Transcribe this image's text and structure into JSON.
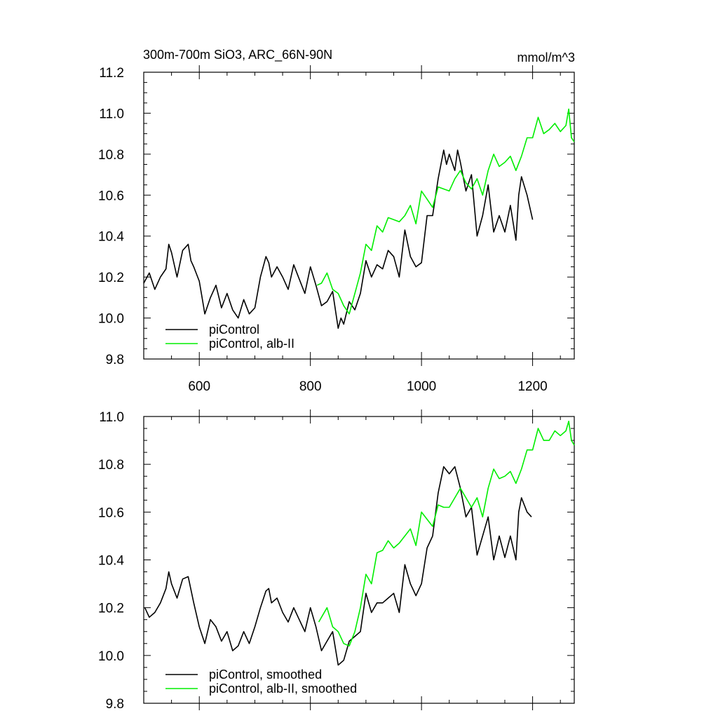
{
  "chart_data": [
    {
      "type": "line",
      "title": "300m-700m SiO3, ARC_66N-90N",
      "units": "mmol/m^3",
      "xlim": [
        500,
        1275
      ],
      "ylim": [
        9.8,
        11.2
      ],
      "xticks": [
        600,
        800,
        1000,
        1200
      ],
      "xtick_labels": [
        "600",
        "800",
        "1000",
        "1200"
      ],
      "yticks": [
        9.8,
        10.0,
        10.2,
        10.4,
        10.6,
        10.8,
        11.0,
        11.2
      ],
      "ytick_labels": [
        "9.8",
        "10.0",
        "10.2",
        "10.4",
        "10.6",
        "10.8",
        "11.0",
        "11.2"
      ],
      "legend_position": "bottom-left",
      "series": [
        {
          "name": "piControl",
          "color": "#000000",
          "x": [
            500,
            510,
            520,
            530,
            540,
            545,
            550,
            560,
            570,
            580,
            585,
            590,
            600,
            605,
            610,
            620,
            630,
            640,
            650,
            660,
            670,
            680,
            690,
            700,
            710,
            720,
            725,
            730,
            740,
            750,
            760,
            770,
            780,
            790,
            800,
            810,
            820,
            830,
            840,
            850,
            855,
            860,
            870,
            880,
            890,
            900,
            910,
            920,
            930,
            940,
            950,
            960,
            970,
            980,
            990,
            1000,
            1010,
            1020,
            1030,
            1040,
            1045,
            1050,
            1060,
            1065,
            1070,
            1080,
            1090,
            1100,
            1110,
            1120,
            1130,
            1140,
            1150,
            1160,
            1170,
            1175,
            1180,
            1190,
            1200
          ],
          "values": [
            10.17,
            10.22,
            10.14,
            10.2,
            10.24,
            10.36,
            10.32,
            10.2,
            10.33,
            10.36,
            10.28,
            10.25,
            10.18,
            10.1,
            10.02,
            10.1,
            10.16,
            10.05,
            10.12,
            10.04,
            10.0,
            10.09,
            10.02,
            10.05,
            10.2,
            10.3,
            10.27,
            10.2,
            10.25,
            10.2,
            10.14,
            10.26,
            10.19,
            10.12,
            10.25,
            10.16,
            10.06,
            10.08,
            10.13,
            9.95,
            10.0,
            9.97,
            10.08,
            10.04,
            10.12,
            10.28,
            10.2,
            10.26,
            10.24,
            10.33,
            10.3,
            10.2,
            10.43,
            10.3,
            10.25,
            10.27,
            10.5,
            10.5,
            10.68,
            10.82,
            10.75,
            10.8,
            10.72,
            10.82,
            10.76,
            10.62,
            10.7,
            10.4,
            10.5,
            10.65,
            10.42,
            10.5,
            10.42,
            10.55,
            10.38,
            10.6,
            10.69,
            10.6,
            10.48
          ]
        },
        {
          "name": "piControl, alb-II",
          "color": "#00ee00",
          "x": [
            812,
            820,
            830,
            840,
            850,
            860,
            870,
            880,
            890,
            900,
            910,
            920,
            930,
            940,
            950,
            960,
            970,
            980,
            990,
            1000,
            1010,
            1020,
            1030,
            1040,
            1050,
            1060,
            1070,
            1080,
            1090,
            1100,
            1110,
            1120,
            1130,
            1140,
            1150,
            1160,
            1170,
            1180,
            1190,
            1200,
            1210,
            1220,
            1230,
            1240,
            1250,
            1260,
            1265,
            1270,
            1275
          ],
          "values": [
            10.16,
            10.17,
            10.22,
            10.14,
            10.12,
            10.06,
            10.02,
            10.12,
            10.22,
            10.36,
            10.33,
            10.45,
            10.42,
            10.49,
            10.48,
            10.47,
            10.5,
            10.55,
            10.46,
            10.62,
            10.58,
            10.54,
            10.64,
            10.63,
            10.62,
            10.68,
            10.72,
            10.66,
            10.63,
            10.68,
            10.6,
            10.72,
            10.8,
            10.74,
            10.76,
            10.79,
            10.72,
            10.79,
            10.88,
            10.88,
            10.98,
            10.9,
            10.92,
            10.95,
            10.91,
            10.94,
            11.02,
            10.88,
            10.86
          ]
        }
      ]
    },
    {
      "type": "line",
      "xlim": [
        500,
        1275
      ],
      "ylim": [
        9.8,
        11.0
      ],
      "xticks": [
        600,
        800,
        1000,
        1200
      ],
      "yticks": [
        9.8,
        10.0,
        10.2,
        10.4,
        10.6,
        10.8,
        11.0
      ],
      "ytick_labels": [
        "9.8",
        "10.0",
        "10.2",
        "10.4",
        "10.6",
        "10.8",
        "11.0"
      ],
      "legend_position": "bottom-left",
      "series": [
        {
          "name": "piControl, smoothed",
          "color": "#000000",
          "x": [
            502,
            510,
            520,
            530,
            540,
            545,
            550,
            560,
            570,
            580,
            590,
            600,
            610,
            620,
            630,
            640,
            650,
            660,
            670,
            680,
            690,
            700,
            710,
            720,
            725,
            730,
            740,
            750,
            760,
            770,
            780,
            790,
            800,
            810,
            820,
            830,
            840,
            850,
            860,
            870,
            880,
            890,
            900,
            910,
            920,
            930,
            940,
            950,
            960,
            970,
            980,
            990,
            1000,
            1010,
            1020,
            1030,
            1040,
            1050,
            1060,
            1070,
            1080,
            1090,
            1100,
            1110,
            1120,
            1130,
            1140,
            1150,
            1160,
            1170,
            1175,
            1180,
            1190,
            1198
          ],
          "values": [
            10.2,
            10.16,
            10.18,
            10.22,
            10.28,
            10.35,
            10.3,
            10.24,
            10.32,
            10.33,
            10.22,
            10.12,
            10.05,
            10.15,
            10.12,
            10.06,
            10.1,
            10.02,
            10.04,
            10.1,
            10.05,
            10.12,
            10.2,
            10.27,
            10.28,
            10.22,
            10.24,
            10.18,
            10.14,
            10.2,
            10.15,
            10.1,
            10.2,
            10.12,
            10.02,
            10.06,
            10.1,
            9.96,
            9.98,
            10.06,
            10.08,
            10.1,
            10.26,
            10.18,
            10.22,
            10.22,
            10.24,
            10.26,
            10.18,
            10.38,
            10.3,
            10.25,
            10.3,
            10.45,
            10.5,
            10.68,
            10.79,
            10.76,
            10.79,
            10.7,
            10.58,
            10.62,
            10.42,
            10.5,
            10.58,
            10.4,
            10.5,
            10.41,
            10.5,
            10.4,
            10.6,
            10.66,
            10.6,
            10.58
          ]
        },
        {
          "name": "piControl, alb-II, smoothed",
          "color": "#00ee00",
          "x": [
            815,
            820,
            830,
            840,
            850,
            860,
            870,
            880,
            890,
            900,
            910,
            920,
            930,
            940,
            950,
            960,
            970,
            980,
            990,
            1000,
            1010,
            1020,
            1030,
            1040,
            1050,
            1060,
            1070,
            1080,
            1090,
            1100,
            1110,
            1120,
            1130,
            1140,
            1150,
            1160,
            1170,
            1180,
            1190,
            1200,
            1210,
            1220,
            1230,
            1240,
            1250,
            1260,
            1265,
            1270,
            1275
          ],
          "values": [
            10.14,
            10.16,
            10.2,
            10.12,
            10.1,
            10.05,
            10.04,
            10.1,
            10.2,
            10.34,
            10.3,
            10.43,
            10.44,
            10.48,
            10.45,
            10.47,
            10.5,
            10.53,
            10.46,
            10.6,
            10.57,
            10.54,
            10.63,
            10.62,
            10.62,
            10.66,
            10.7,
            10.66,
            10.62,
            10.66,
            10.58,
            10.7,
            10.78,
            10.74,
            10.75,
            10.77,
            10.72,
            10.78,
            10.86,
            10.86,
            10.95,
            10.9,
            10.9,
            10.94,
            10.92,
            10.94,
            10.98,
            10.9,
            10.88
          ]
        }
      ]
    }
  ]
}
